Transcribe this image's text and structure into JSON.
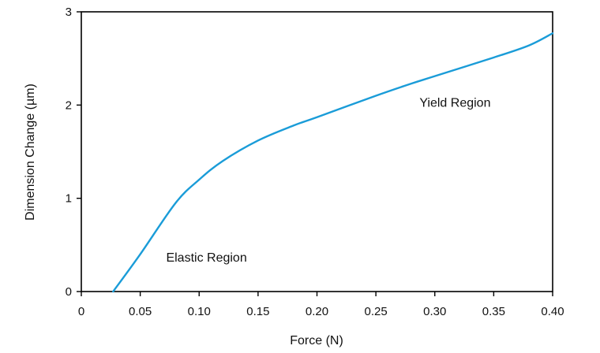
{
  "chart_data": {
    "type": "line",
    "title": "",
    "xlabel": "Force (N)",
    "ylabel": "Dimension Change (µm)",
    "xlim": [
      0,
      0.4
    ],
    "ylim": [
      0,
      3
    ],
    "grid": false,
    "legend": "none",
    "x_ticks": [
      "0",
      "0.05",
      "0.10",
      "0.15",
      "0.20",
      "0.25",
      "0.30",
      "0.35",
      "0.40"
    ],
    "y_ticks": [
      "0",
      "1",
      "2",
      "3"
    ],
    "series": [
      {
        "color": "#1a9cd8",
        "x": [
          0.027,
          0.05,
          0.08,
          0.1,
          0.12,
          0.15,
          0.18,
          0.2,
          0.25,
          0.28,
          0.3,
          0.35,
          0.38,
          0.4
        ],
        "y": [
          0.0,
          0.4,
          0.95,
          1.2,
          1.4,
          1.62,
          1.78,
          1.87,
          2.1,
          2.23,
          2.31,
          2.51,
          2.64,
          2.77
        ]
      }
    ],
    "annotations": [
      {
        "text": "Elastic Region",
        "x": 0.072,
        "y": 0.32
      },
      {
        "text": "Yield Region",
        "x": 0.287,
        "y": 1.98
      }
    ]
  }
}
